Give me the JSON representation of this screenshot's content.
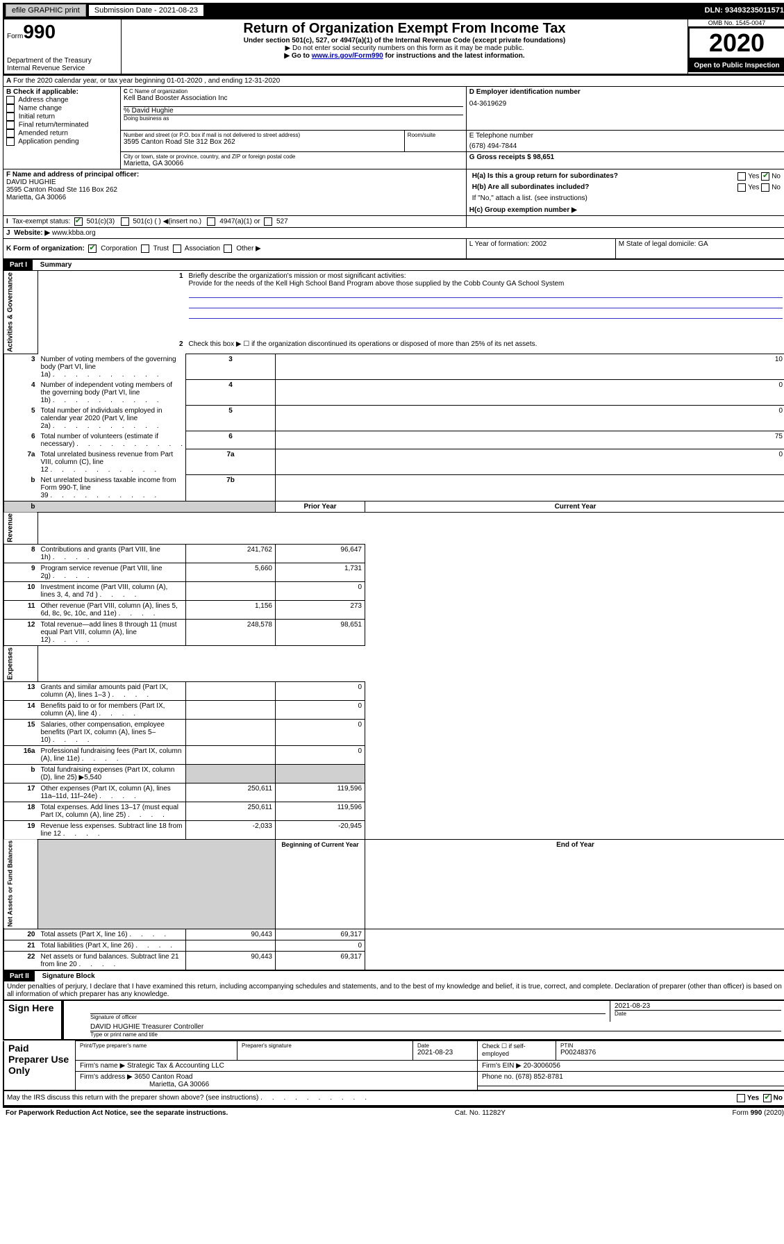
{
  "topbar": {
    "efile": "efile GRAPHIC print",
    "submission_label": "Submission Date - 2021-08-23",
    "dln": "DLN: 93493235011571"
  },
  "header": {
    "form_word": "Form",
    "form_number": "990",
    "dept": "Department of the Treasury\nInternal Revenue Service",
    "title": "Return of Organization Exempt From Income Tax",
    "subtitle": "Under section 501(c), 527, or 4947(a)(1) of the Internal Revenue Code (except private foundations)",
    "arrow1": "▶ Do not enter social security numbers on this form as it may be made public.",
    "arrow2_pre": "▶ Go to ",
    "arrow2_link": "www.irs.gov/Form990",
    "arrow2_post": " for instructions and the latest information.",
    "omb": "OMB No. 1545-0047",
    "year": "2020",
    "open": "Open to Public Inspection"
  },
  "lineA": "For the 2020 calendar year, or tax year beginning 01-01-2020     , and ending 12-31-2020",
  "boxB": {
    "label": "B Check if applicable:",
    "items": [
      "Address change",
      "Name change",
      "Initial return",
      "Final return/terminated",
      "Amended return",
      "Application pending"
    ]
  },
  "boxC": {
    "label_name": "C Name of organization",
    "org": "Kell Band Booster Association Inc",
    "care_of": "% David Hughie",
    "dba_label": "Doing business as",
    "addr_label": "Number and street (or P.O. box if mail is not delivered to street address)",
    "room_label": "Room/suite",
    "addr": "3595 Canton Road Ste 312 Box 262",
    "city_label": "City or town, state or province, country, and ZIP or foreign postal code",
    "city": "Marietta, GA  30066"
  },
  "boxD": {
    "label": "D Employer identification number",
    "value": "04-3619629"
  },
  "boxE": {
    "label": "E Telephone number",
    "value": "(678) 494-7844"
  },
  "boxG": {
    "label": "G Gross receipts $ 98,651"
  },
  "boxF": {
    "label": "F  Name and address of principal officer:",
    "name": "DAVID HUGHIE",
    "addr1": "3595 Canton Road Ste 116 Box 262",
    "addr2": "Marietta, GA  30066"
  },
  "boxH": {
    "a": "H(a)  Is this a group return for subordinates?",
    "b": "H(b)  Are all subordinates included?",
    "b_note": "If \"No,\" attach a list. (see instructions)",
    "c": "H(c)  Group exemption number ▶",
    "yes": "Yes",
    "no": "No"
  },
  "boxI": {
    "label": "Tax-exempt status:",
    "o1": "501(c)(3)",
    "o2": "501(c) (   ) ◀(insert no.)",
    "o3": "4947(a)(1) or",
    "o4": "527"
  },
  "boxJ": {
    "label": "Website: ▶",
    "value": " www.kbba.org"
  },
  "boxK": {
    "label": "K Form of organization:",
    "corp": "Corporation",
    "trust": "Trust",
    "assoc": "Association",
    "other": "Other ▶"
  },
  "boxL": {
    "label": "L Year of formation: 2002"
  },
  "boxM": {
    "label": "M State of legal domicile: GA"
  },
  "part1": {
    "header": "Part I",
    "title": "Summary"
  },
  "summary": {
    "l1_label": "Briefly describe the organization's mission or most significant activities:",
    "l1_text": "Provide for the needs of the Kell High School Band Program above those supplied by the Cobb County GA School System",
    "l2": "Check this box ▶ ☐  if the organization discontinued its operations or disposed of more than 25% of its net assets.",
    "rows_gov": [
      {
        "n": "3",
        "t": "Number of voting members of the governing body (Part VI, line 1a)",
        "i": "3",
        "v": "10"
      },
      {
        "n": "4",
        "t": "Number of independent voting members of the governing body (Part VI, line 1b)",
        "i": "4",
        "v": "0"
      },
      {
        "n": "5",
        "t": "Total number of individuals employed in calendar year 2020 (Part V, line 2a)",
        "i": "5",
        "v": "0"
      },
      {
        "n": "6",
        "t": "Total number of volunteers (estimate if necessary)",
        "i": "6",
        "v": "75"
      },
      {
        "n": "7a",
        "t": "Total unrelated business revenue from Part VIII, column (C), line 12",
        "i": "7a",
        "v": "0"
      },
      {
        "n": "b",
        "t": "Net unrelated business taxable income from Form 990-T, line 39",
        "i": "7b",
        "v": ""
      }
    ],
    "col1": "Prior Year",
    "col2": "Current Year",
    "rows_rev": [
      {
        "n": "8",
        "t": "Contributions and grants (Part VIII, line 1h)",
        "p": "241,762",
        "c": "96,647"
      },
      {
        "n": "9",
        "t": "Program service revenue (Part VIII, line 2g)",
        "p": "5,660",
        "c": "1,731"
      },
      {
        "n": "10",
        "t": "Investment income (Part VIII, column (A), lines 3, 4, and 7d )",
        "p": "",
        "c": "0"
      },
      {
        "n": "11",
        "t": "Other revenue (Part VIII, column (A), lines 5, 6d, 8c, 9c, 10c, and 11e)",
        "p": "1,156",
        "c": "273"
      },
      {
        "n": "12",
        "t": "Total revenue—add lines 8 through 11 (must equal Part VIII, column (A), line 12)",
        "p": "248,578",
        "c": "98,651"
      }
    ],
    "rows_exp": [
      {
        "n": "13",
        "t": "Grants and similar amounts paid (Part IX, column (A), lines 1–3 )",
        "p": "",
        "c": "0"
      },
      {
        "n": "14",
        "t": "Benefits paid to or for members (Part IX, column (A), line 4)",
        "p": "",
        "c": "0"
      },
      {
        "n": "15",
        "t": "Salaries, other compensation, employee benefits (Part IX, column (A), lines 5–10)",
        "p": "",
        "c": "0"
      },
      {
        "n": "16a",
        "t": "Professional fundraising fees (Part IX, column (A), line 11e)",
        "p": "",
        "c": "0"
      },
      {
        "n": "b",
        "t": "Total fundraising expenses (Part IX, column (D), line 25) ▶5,540",
        "p": null,
        "c": null
      },
      {
        "n": "17",
        "t": "Other expenses (Part IX, column (A), lines 11a–11d, 11f–24e)",
        "p": "250,611",
        "c": "119,596"
      },
      {
        "n": "18",
        "t": "Total expenses. Add lines 13–17 (must equal Part IX, column (A), line 25)",
        "p": "250,611",
        "c": "119,596"
      },
      {
        "n": "19",
        "t": "Revenue less expenses. Subtract line 18 from line 12",
        "p": "-2,033",
        "c": "-20,945"
      }
    ],
    "col3": "Beginning of Current Year",
    "col4": "End of Year",
    "rows_net": [
      {
        "n": "20",
        "t": "Total assets (Part X, line 16)",
        "p": "90,443",
        "c": "69,317"
      },
      {
        "n": "21",
        "t": "Total liabilities (Part X, line 26)",
        "p": "",
        "c": "0"
      },
      {
        "n": "22",
        "t": "Net assets or fund balances. Subtract line 21 from line 20",
        "p": "90,443",
        "c": "69,317"
      }
    ],
    "vlabels": {
      "gov": "Activities & Governance",
      "rev": "Revenue",
      "exp": "Expenses",
      "net": "Net Assets or Fund Balances"
    }
  },
  "part2": {
    "header": "Part II",
    "title": "Signature Block"
  },
  "sig": {
    "penalty": "Under penalties of perjury, I declare that I have examined this return, including accompanying schedules and statements, and to the best of my knowledge and belief, it is true, correct, and complete. Declaration of preparer (other than officer) is based on all information of which preparer has any knowledge.",
    "sign_here": "Sign Here",
    "sig_officer_label": "Signature of officer",
    "date": "2021-08-23",
    "date_label": "Date",
    "officer_name": "DAVID HUGHIE  Treasurer Controller",
    "officer_name_label": "Type or print name and title",
    "paid": "Paid Preparer Use Only",
    "prep_name_label": "Print/Type preparer's name",
    "prep_sig_label": "Preparer's signature",
    "prep_date_label": "Date",
    "prep_date": "2021-08-23",
    "check_self": "Check ☐ if self-employed",
    "ptin_label": "PTIN",
    "ptin": "P00248376",
    "firm_name_label": "Firm's name      ▶",
    "firm_name": "Strategic Tax & Accounting LLC",
    "firm_ein_label": "Firm's EIN ▶",
    "firm_ein": "20-3006056",
    "firm_addr_label": "Firm's address ▶",
    "firm_addr1": "3650 Canton Road",
    "firm_addr2": "Marietta, GA  30066",
    "phone_label": "Phone no.",
    "phone": "(678) 852-8781",
    "discuss": "May the IRS discuss this return with the preparer shown above? (see instructions)"
  },
  "footer": {
    "left": "For Paperwork Reduction Act Notice, see the separate instructions.",
    "mid": "Cat. No. 11282Y",
    "right": "Form 990 (2020)"
  }
}
